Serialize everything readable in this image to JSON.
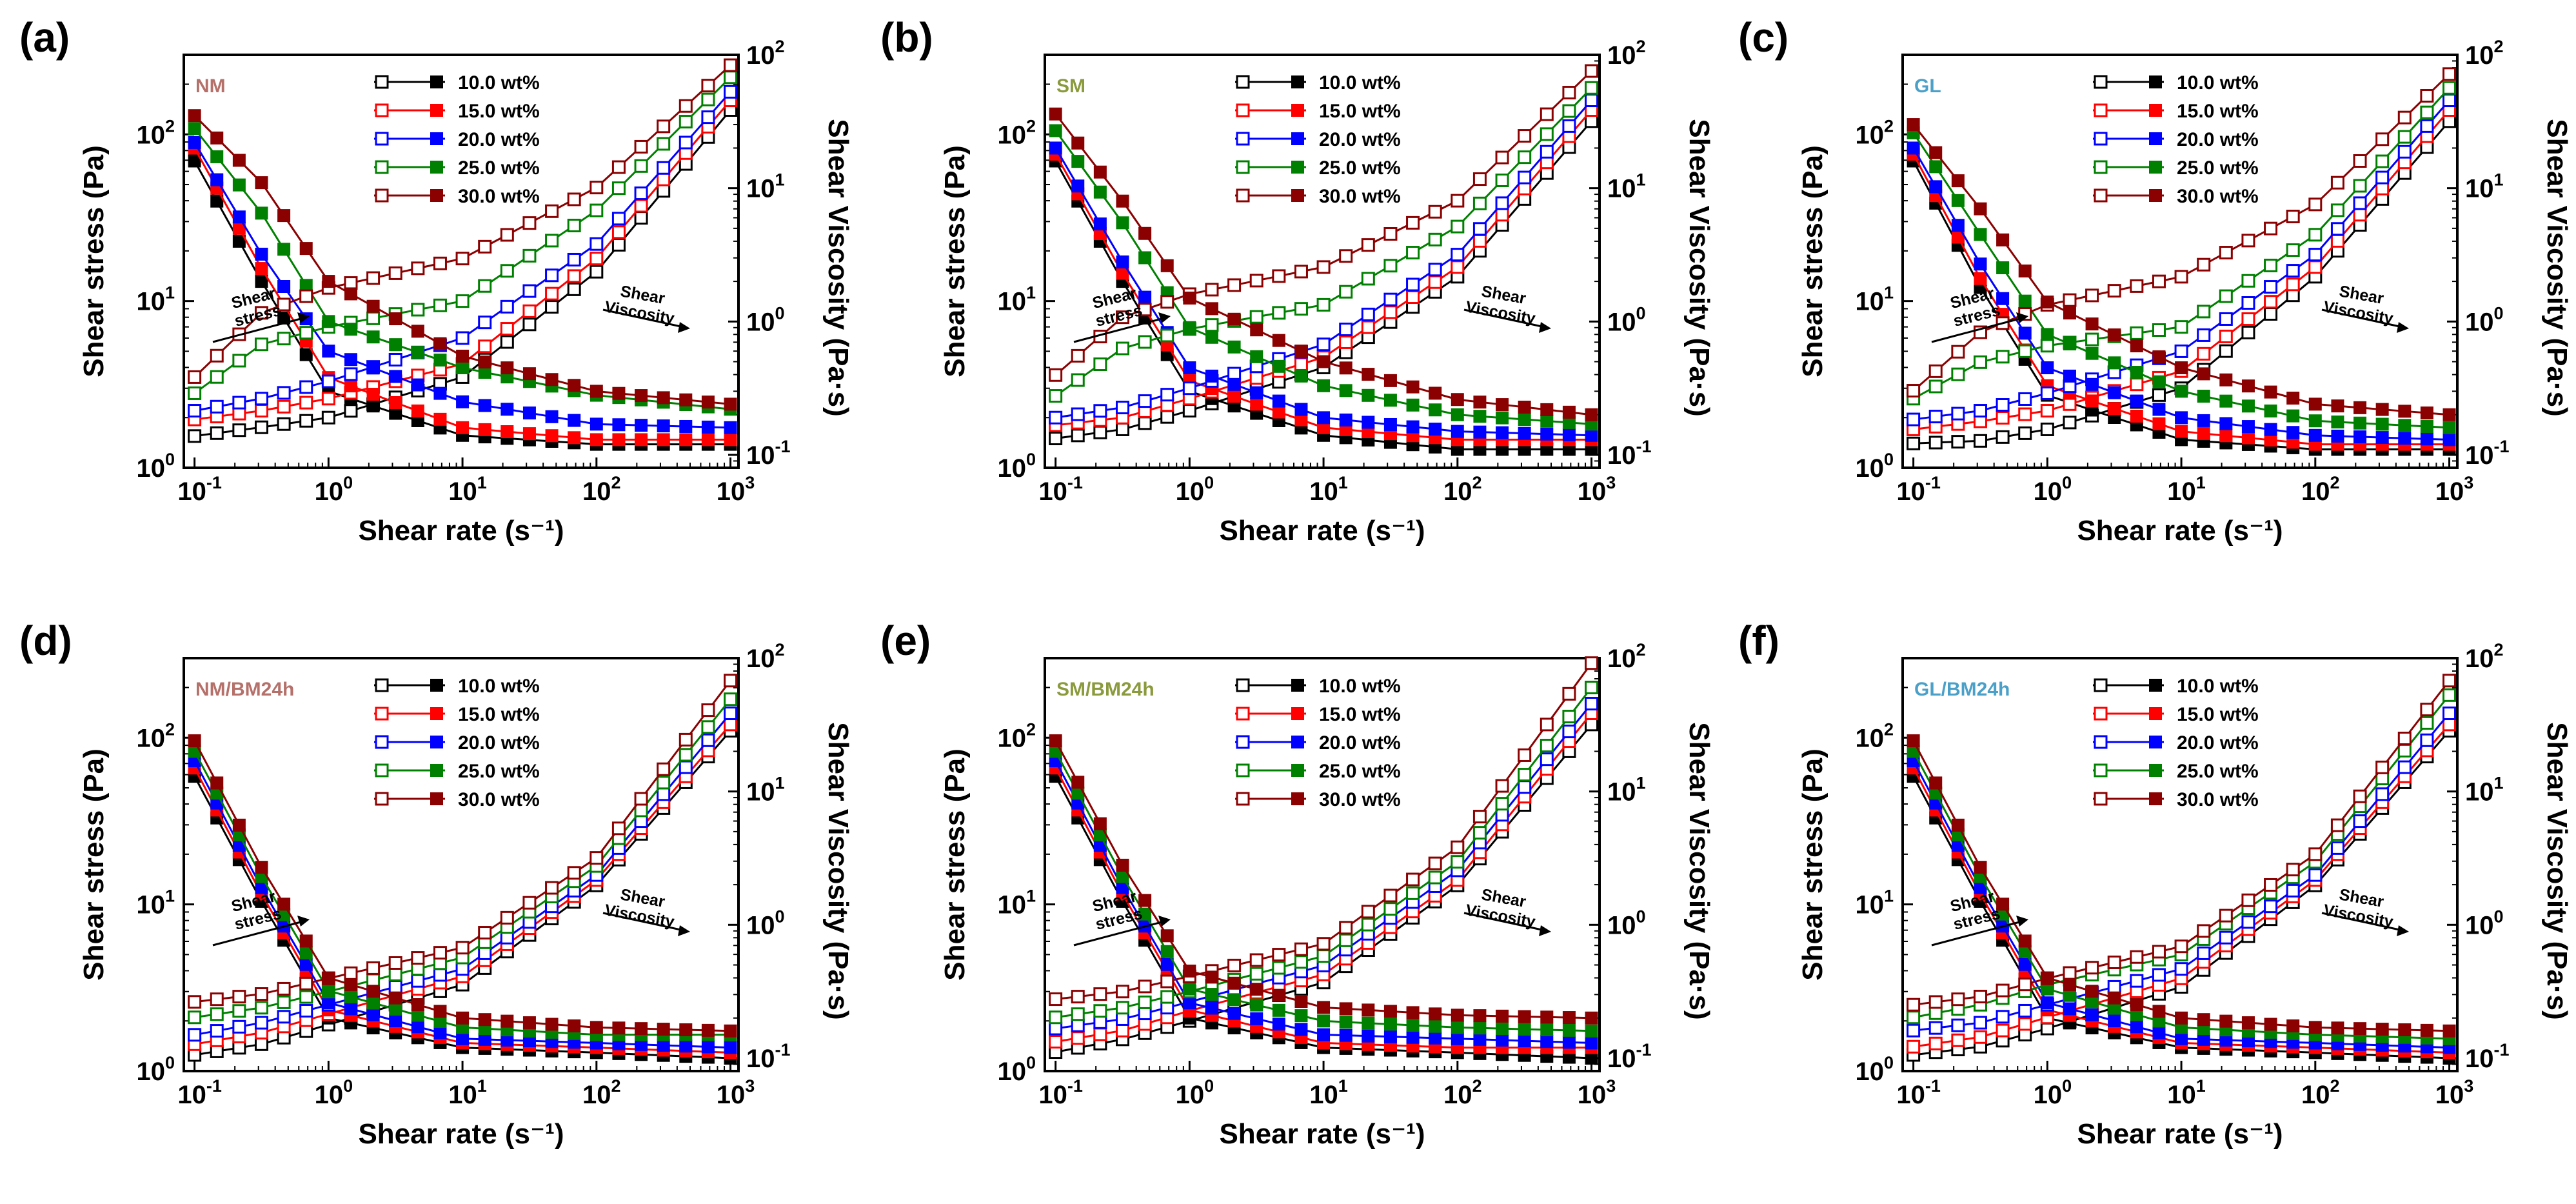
{
  "figure": {
    "colors": {
      "10.0 wt%": "#000000",
      "15.0 wt%": "#ff0000",
      "20.0 wt%": "#0000ff",
      "25.0 wt%": "#008000",
      "30.0 wt%": "#8b0000"
    },
    "sample_label_colors": {
      "NM": "#b5706a",
      "SM": "#8a9a3c",
      "GL": "#4aa0c8"
    }
  },
  "chart_data": [
    {
      "panel": "(a)",
      "sample": "NM",
      "sample_color": "#b5706a",
      "type": "line",
      "xlabel": "Shear rate (s⁻¹)",
      "ylabel_left": "Shear stress (Pa)",
      "ylabel_right": "Shear Viscosity (Pa·s)",
      "xlim": [
        0.1,
        1000
      ],
      "ylim_left": [
        1,
        300
      ],
      "ylim_right": [
        0.08,
        100
      ],
      "xscale": "log",
      "yscale": "log",
      "x_ticks": [
        "10-1",
        "100",
        "101",
        "102",
        "103"
      ],
      "y_left_ticks": [
        "100",
        "101",
        "102"
      ],
      "y_right_ticks": [
        "10-1",
        "100",
        "101",
        "102"
      ],
      "legend": [
        "10.0 wt%",
        "15.0 wt%",
        "20.0 wt%",
        "25.0 wt%",
        "30.0 wt%"
      ],
      "annotations": {
        "stress": "Shear stress",
        "viscosity": "Shear Viscosity"
      },
      "series": [
        {
          "name": "10.0 wt%",
          "stress": [
            1.55,
            1.75,
            2.0,
            3.5,
            15,
            140
          ],
          "viscosity": [
            16,
            2.0,
            0.3,
            0.14,
            0.12,
            0.12
          ]
        },
        {
          "name": "15.0 wt%",
          "stress": [
            1.95,
            2.2,
            2.6,
            4.2,
            18,
            160
          ],
          "viscosity": [
            20,
            2.5,
            0.38,
            0.16,
            0.13,
            0.13
          ]
        },
        {
          "name": "20.0 wt%",
          "stress": [
            2.2,
            2.6,
            3.3,
            6.0,
            22,
            180
          ],
          "viscosity": [
            22,
            3.2,
            0.6,
            0.25,
            0.17,
            0.16
          ]
        },
        {
          "name": "25.0 wt%",
          "stress": [
            2.8,
            5.5,
            7.0,
            10,
            35,
            220
          ],
          "viscosity": [
            28,
            6.5,
            1.0,
            0.45,
            0.28,
            0.22
          ]
        },
        {
          "name": "30.0 wt%",
          "stress": [
            3.5,
            8.5,
            12,
            18,
            48,
            260
          ],
          "viscosity": [
            35,
            11,
            2.0,
            0.55,
            0.3,
            0.24
          ]
        }
      ]
    },
    {
      "panel": "(b)",
      "sample": "SM",
      "sample_color": "#8a9a3c",
      "type": "line",
      "xlabel": "Shear rate (s⁻¹)",
      "ylabel_left": "Shear stress (Pa)",
      "ylabel_right": "Shear Viscosity (Pa·s)",
      "xlim": [
        0.1,
        1000
      ],
      "ylim_left": [
        1,
        300
      ],
      "ylim_right": [
        0.08,
        100
      ],
      "xscale": "log",
      "yscale": "log",
      "x_ticks": [
        "10-1",
        "100",
        "101",
        "102",
        "103"
      ],
      "y_left_ticks": [
        "100",
        "101",
        "102"
      ],
      "y_right_ticks": [
        "10-1",
        "100",
        "101",
        "102"
      ],
      "legend": [
        "10.0 wt%",
        "15.0 wt%",
        "20.0 wt%",
        "25.0 wt%",
        "30.0 wt%"
      ],
      "annotations": {
        "stress": "Shear stress",
        "viscosity": "Shear Viscosity"
      },
      "series": [
        {
          "name": "10.0 wt%",
          "stress": [
            1.5,
            1.7,
            2.2,
            4.0,
            14,
            120
          ],
          "viscosity": [
            16,
            2.0,
            0.3,
            0.14,
            0.11,
            0.11
          ]
        },
        {
          "name": "15.0 wt%",
          "stress": [
            1.8,
            2.0,
            2.6,
            4.6,
            16,
            140
          ],
          "viscosity": [
            18,
            2.3,
            0.36,
            0.16,
            0.13,
            0.13
          ]
        },
        {
          "name": "20.0 wt%",
          "stress": [
            2.0,
            2.3,
            3.0,
            5.5,
            19,
            160
          ],
          "viscosity": [
            20,
            2.8,
            0.45,
            0.19,
            0.15,
            0.14
          ]
        },
        {
          "name": "25.0 wt%",
          "stress": [
            2.7,
            5.2,
            6.8,
            9.5,
            28,
            190
          ],
          "viscosity": [
            27,
            5.5,
            0.9,
            0.33,
            0.2,
            0.17
          ]
        },
        {
          "name": "30.0 wt%",
          "stress": [
            3.6,
            8.0,
            11,
            16,
            40,
            240
          ],
          "viscosity": [
            36,
            8.0,
            1.5,
            0.5,
            0.26,
            0.2
          ]
        }
      ]
    },
    {
      "panel": "(c)",
      "sample": "GL",
      "sample_color": "#4aa0c8",
      "type": "line",
      "xlabel": "Shear rate (s⁻¹)",
      "ylabel_left": "Shear stress (Pa)",
      "ylabel_right": "Shear Viscosity (Pa·s)",
      "xlim": [
        0.1,
        1000
      ],
      "ylim_left": [
        1,
        300
      ],
      "ylim_right": [
        0.08,
        100
      ],
      "xscale": "log",
      "yscale": "log",
      "x_ticks": [
        "10-1",
        "100",
        "101",
        "102",
        "103"
      ],
      "y_left_ticks": [
        "100",
        "101",
        "102"
      ],
      "y_right_ticks": [
        "10-1",
        "100",
        "101",
        "102"
      ],
      "legend": [
        "10.0 wt%",
        "15.0 wt%",
        "20.0 wt%",
        "25.0 wt%",
        "30.0 wt%"
      ],
      "annotations": {
        "stress": "Shear stress",
        "viscosity": "Shear Viscosity"
      },
      "series": [
        {
          "name": "10.0 wt%",
          "stress": [
            1.4,
            1.45,
            1.7,
            3.0,
            14,
            120
          ],
          "viscosity": [
            16,
            1.8,
            0.28,
            0.13,
            0.11,
            0.11
          ]
        },
        {
          "name": "15.0 wt%",
          "stress": [
            1.7,
            1.9,
            2.2,
            3.8,
            16,
            140
          ],
          "viscosity": [
            18,
            2.1,
            0.33,
            0.15,
            0.12,
            0.12
          ]
        },
        {
          "name": "20.0 wt%",
          "stress": [
            1.95,
            2.2,
            2.8,
            5.0,
            19,
            160
          ],
          "viscosity": [
            20,
            2.7,
            0.45,
            0.19,
            0.14,
            0.13
          ]
        },
        {
          "name": "25.0 wt%",
          "stress": [
            2.6,
            4.3,
            5.4,
            7.0,
            25,
            190
          ],
          "viscosity": [
            26,
            4.5,
            0.8,
            0.3,
            0.18,
            0.16
          ]
        },
        {
          "name": "30.0 wt%",
          "stress": [
            2.9,
            6.5,
            9.5,
            14,
            38,
            230
          ],
          "viscosity": [
            30,
            7.0,
            1.4,
            0.45,
            0.24,
            0.2
          ]
        }
      ]
    },
    {
      "panel": "(d)",
      "sample": "NM/BM24h",
      "sample_color": "#b5706a",
      "type": "line",
      "xlabel": "Shear rate (s⁻¹)",
      "ylabel_left": "Shear stress (Pa)",
      "ylabel_right": "Shear Viscosity (Pa·s)",
      "xlim": [
        0.1,
        1000
      ],
      "ylim_left": [
        1,
        300
      ],
      "ylim_right": [
        0.08,
        100
      ],
      "xscale": "log",
      "yscale": "log",
      "x_ticks": [
        "10-1",
        "100",
        "101",
        "102",
        "103"
      ],
      "y_left_ticks": [
        "100",
        "101",
        "102"
      ],
      "y_right_ticks": [
        "10-1",
        "100",
        "101",
        "102"
      ],
      "legend": [
        "10.0 wt%",
        "15.0 wt%",
        "20.0 wt%",
        "25.0 wt%",
        "30.0 wt%"
      ],
      "annotations": {
        "stress": "Shear stress",
        "viscosity": "Shear Viscosity"
      },
      "series": [
        {
          "name": "10.0 wt%",
          "stress": [
            1.25,
            1.45,
            1.9,
            3.3,
            13,
            110
          ],
          "viscosity": [
            13,
            1.5,
            0.2,
            0.12,
            0.11,
            0.1
          ]
        },
        {
          "name": "15.0 wt%",
          "stress": [
            1.45,
            1.7,
            2.2,
            3.7,
            14,
            120
          ],
          "viscosity": [
            15,
            1.7,
            0.23,
            0.13,
            0.12,
            0.11
          ]
        },
        {
          "name": "20.0 wt%",
          "stress": [
            1.65,
            1.95,
            2.5,
            4.1,
            15,
            140
          ],
          "viscosity": [
            17,
            1.9,
            0.26,
            0.14,
            0.13,
            0.12
          ]
        },
        {
          "name": "25.0 wt%",
          "stress": [
            2.1,
            2.4,
            3.0,
            4.8,
            17,
            170
          ],
          "viscosity": [
            20,
            2.3,
            0.32,
            0.17,
            0.15,
            0.15
          ]
        },
        {
          "name": "30.0 wt%",
          "stress": [
            2.6,
            2.9,
            3.6,
            5.5,
            19,
            220
          ],
          "viscosity": [
            24,
            2.7,
            0.4,
            0.2,
            0.17,
            0.16
          ]
        }
      ]
    },
    {
      "panel": "(e)",
      "sample": "SM/BM24h",
      "sample_color": "#8a9a3c",
      "type": "line",
      "xlabel": "Shear rate (s⁻¹)",
      "ylabel_left": "Shear stress (Pa)",
      "ylabel_right": "Shear Viscosity (Pa·s)",
      "xlim": [
        0.1,
        1000
      ],
      "ylim_left": [
        1,
        300
      ],
      "ylim_right": [
        0.08,
        100
      ],
      "xscale": "log",
      "yscale": "log",
      "x_ticks": [
        "10-1",
        "100",
        "101",
        "102",
        "103"
      ],
      "y_left_ticks": [
        "100",
        "101",
        "102"
      ],
      "y_right_ticks": [
        "10-1",
        "100",
        "101",
        "102"
      ],
      "legend": [
        "10.0 wt%",
        "15.0 wt%",
        "20.0 wt%",
        "25.0 wt%",
        "30.0 wt%"
      ],
      "annotations": {
        "stress": "Shear stress",
        "viscosity": "Shear Viscosity"
      },
      "series": [
        {
          "name": "10.0 wt%",
          "stress": [
            1.3,
            1.55,
            2.0,
            3.4,
            13,
            120
          ],
          "viscosity": [
            13,
            1.5,
            0.2,
            0.12,
            0.11,
            0.1
          ]
        },
        {
          "name": "15.0 wt%",
          "stress": [
            1.5,
            1.75,
            2.3,
            3.8,
            14,
            140
          ],
          "viscosity": [
            15,
            1.7,
            0.23,
            0.13,
            0.12,
            0.12
          ]
        },
        {
          "name": "20.0 wt%",
          "stress": [
            1.8,
            2.05,
            2.6,
            4.3,
            16,
            160
          ],
          "viscosity": [
            17,
            1.9,
            0.26,
            0.15,
            0.14,
            0.13
          ]
        },
        {
          "name": "25.0 wt%",
          "stress": [
            2.1,
            2.4,
            3.0,
            4.9,
            18,
            200
          ],
          "viscosity": [
            20,
            2.3,
            0.33,
            0.19,
            0.17,
            0.16
          ]
        },
        {
          "name": "30.0 wt%",
          "stress": [
            2.7,
            3.0,
            3.7,
            5.8,
            22,
            280
          ],
          "viscosity": [
            24,
            2.8,
            0.45,
            0.24,
            0.21,
            0.2
          ]
        }
      ]
    },
    {
      "panel": "(f)",
      "sample": "GL/BM24h",
      "sample_color": "#4aa0c8",
      "type": "line",
      "xlabel": "Shear rate (s⁻¹)",
      "ylabel_left": "Shear stress (Pa)",
      "ylabel_right": "Shear Viscosity (Pa·s)",
      "xlim": [
        0.1,
        1000
      ],
      "ylim_left": [
        1,
        300
      ],
      "ylim_right": [
        0.08,
        100
      ],
      "xscale": "log",
      "yscale": "log",
      "x_ticks": [
        "10-1",
        "100",
        "101",
        "102",
        "103"
      ],
      "y_left_ticks": [
        "100",
        "101",
        "102"
      ],
      "y_right_ticks": [
        "10-1",
        "100",
        "101",
        "102"
      ],
      "legend": [
        "10.0 wt%",
        "15.0 wt%",
        "20.0 wt%",
        "25.0 wt%",
        "30.0 wt%"
      ],
      "annotations": {
        "stress": "Shear stress",
        "viscosity": "Shear Viscosity"
      },
      "series": [
        {
          "name": "10.0 wt%",
          "stress": [
            1.25,
            1.4,
            1.8,
            3.2,
            13,
            110
          ],
          "viscosity": [
            13,
            1.5,
            0.2,
            0.12,
            0.11,
            0.1
          ]
        },
        {
          "name": "15.0 wt%",
          "stress": [
            1.4,
            1.6,
            2.1,
            3.6,
            14,
            120
          ],
          "viscosity": [
            15,
            1.7,
            0.23,
            0.13,
            0.12,
            0.11
          ]
        },
        {
          "name": "20.0 wt%",
          "stress": [
            1.75,
            1.95,
            2.5,
            4.1,
            15,
            140
          ],
          "viscosity": [
            17,
            1.9,
            0.26,
            0.14,
            0.13,
            0.12
          ]
        },
        {
          "name": "25.0 wt%",
          "stress": [
            2.1,
            2.5,
            3.3,
            5.0,
            18,
            180
          ],
          "viscosity": [
            20,
            2.3,
            0.33,
            0.17,
            0.15,
            0.14
          ]
        },
        {
          "name": "30.0 wt%",
          "stress": [
            2.5,
            2.8,
            3.6,
            5.6,
            20,
            220
          ],
          "viscosity": [
            24,
            2.7,
            0.4,
            0.2,
            0.17,
            0.16
          ]
        }
      ]
    }
  ]
}
